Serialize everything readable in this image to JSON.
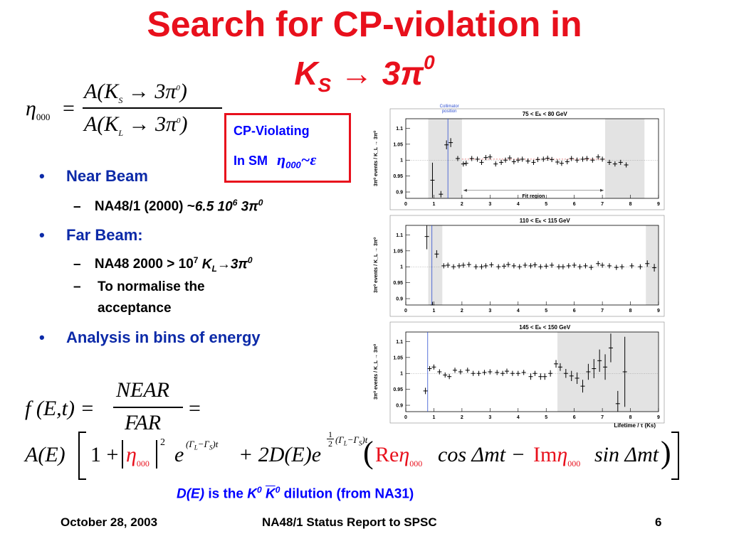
{
  "title": {
    "line1": "Search for CP-violation in",
    "line2_K": "K",
    "line2_sub": "S",
    "line2_arrow": "→",
    "line2_rest": "3π",
    "line2_sup": "0"
  },
  "eta_formula": {
    "lhs": "η",
    "lhs_sub": "000",
    "equals": "=",
    "num": "A(K",
    "num_sub": "S",
    "num_rest": "→ 3π",
    "num_sup": "0",
    "num_close": ")",
    "den": "A(K",
    "den_sub": "L",
    "den_rest": "→ 3π",
    "den_sup": "0",
    "den_close": ")"
  },
  "cp_box": {
    "line1": "CP-Violating",
    "line2": "In SM",
    "eta": "η",
    "eta_sub": "000",
    "rel": "~ε"
  },
  "bullets": {
    "b1": "Near Beam",
    "b1_sub1_pre": "NA48/1 (2000) ~",
    "b1_sub1_val": "6.5 10",
    "b1_sub1_exp": "6",
    "b1_sub1_post": " 3π",
    "b1_sub1_post_sup": "0",
    "b2": "Far Beam:",
    "b2_sub1_pre": "NA48 2000  > 10",
    "b2_sub1_exp": "7",
    "b2_sub1_k": " K",
    "b2_sub1_ksub": "L",
    "b2_sub1_post": "→3π",
    "b2_sub1_post_sup": "0",
    "b2_sub2_l1": "To normalise the",
    "b2_sub2_l2": "acceptance",
    "b3": "Analysis in bins of energy",
    "dash": "–",
    "dot": "•"
  },
  "f_formula": {
    "lhs": "f (E,t) =",
    "num": "NEAR",
    "den": "FAR",
    "eq": "="
  },
  "a_formula": {
    "lead": "A(E)",
    "one": "1 +",
    "eta": "η",
    "eta_sub": "000",
    "pow": "2",
    "exp1": "e",
    "exp1_sup": "(Γ",
    "exp1_sup_L": "L",
    "exp1_sup_mid": "−Γ",
    "exp1_sup_S": "S",
    "exp1_sup_end": ")t",
    "plus2": "+ 2D(E)e",
    "half_num": "1",
    "half_den": "2",
    "exp2_sup": "(Γ",
    "exp2_sup_L": "L",
    "exp2_sup_mid": "−Γ",
    "exp2_sup_S": "S",
    "exp2_sup_end": ")t",
    "re": "Re",
    "im": "Im",
    "cos": "cos Δmt −",
    "sin": "sin Δmt"
  },
  "dilution_note": {
    "d": "D(E)",
    "mid": " is the ",
    "k0": "K",
    "k0_sup": "0",
    "k0bar": "K",
    "k0bar_sup": "0",
    "tail": " dilution (from NA31)"
  },
  "footer": {
    "date": "October 28, 2003",
    "center": "NA48/1 Status Report to SPSC",
    "page": "6"
  },
  "colors": {
    "title_red": "#e8101c",
    "bullet_blue": "#0c2aa8",
    "box_border": "#e8101c",
    "box_text": "#0000ff",
    "shade": "#e3e3e3",
    "collimator_line": "#3050d0",
    "fit_line": "#e06060"
  },
  "chart_data": [
    {
      "type": "scatter",
      "title": "75 < E_K < 80 GeV",
      "ylabel": "3π⁰ events / K_L → 3π⁰",
      "xlim": [
        0,
        9
      ],
      "ylim": [
        0.88,
        1.13
      ],
      "yticks": [
        "0.9",
        "0.95",
        "1",
        "1.05",
        "1.1"
      ],
      "xticks": [
        "0",
        "1",
        "2",
        "3",
        "4",
        "5",
        "6",
        "7",
        "8",
        "9"
      ],
      "shaded": [
        [
          0.8,
          2.0
        ],
        [
          7.1,
          8.5
        ]
      ],
      "vline": 1.5,
      "annotation_collimator": "Collimator position",
      "annotation_fit": "Fit region",
      "fit_range": [
        2.0,
        7.1
      ],
      "points": [
        {
          "x": 0.95,
          "y": 0.937,
          "e": 0.055
        },
        {
          "x": 1.25,
          "y": 0.893,
          "e": 0.01
        },
        {
          "x": 1.45,
          "y": 1.048,
          "e": 0.014
        },
        {
          "x": 1.6,
          "y": 1.055,
          "e": 0.014
        },
        {
          "x": 1.85,
          "y": 1.005,
          "e": 0.008
        },
        {
          "x": 2.05,
          "y": 0.988,
          "e": 0.008
        },
        {
          "x": 2.15,
          "y": 0.99,
          "e": 0.008
        },
        {
          "x": 2.35,
          "y": 1.005,
          "e": 0.008
        },
        {
          "x": 2.55,
          "y": 1.003,
          "e": 0.008
        },
        {
          "x": 2.7,
          "y": 0.993,
          "e": 0.008
        },
        {
          "x": 2.85,
          "y": 1.008,
          "e": 0.008
        },
        {
          "x": 3.0,
          "y": 1.01,
          "e": 0.008
        },
        {
          "x": 3.2,
          "y": 0.988,
          "e": 0.008
        },
        {
          "x": 3.4,
          "y": 0.993,
          "e": 0.008
        },
        {
          "x": 3.55,
          "y": 1.0,
          "e": 0.008
        },
        {
          "x": 3.7,
          "y": 1.007,
          "e": 0.008
        },
        {
          "x": 3.85,
          "y": 0.995,
          "e": 0.008
        },
        {
          "x": 4.0,
          "y": 1.0,
          "e": 0.008
        },
        {
          "x": 4.15,
          "y": 1.003,
          "e": 0.008
        },
        {
          "x": 4.35,
          "y": 0.997,
          "e": 0.008
        },
        {
          "x": 4.55,
          "y": 0.993,
          "e": 0.008
        },
        {
          "x": 4.7,
          "y": 1.002,
          "e": 0.008
        },
        {
          "x": 4.9,
          "y": 1.003,
          "e": 0.008
        },
        {
          "x": 5.05,
          "y": 1.006,
          "e": 0.008
        },
        {
          "x": 5.2,
          "y": 1.002,
          "e": 0.008
        },
        {
          "x": 5.4,
          "y": 0.994,
          "e": 0.008
        },
        {
          "x": 5.55,
          "y": 0.99,
          "e": 0.008
        },
        {
          "x": 5.75,
          "y": 0.995,
          "e": 0.008
        },
        {
          "x": 5.9,
          "y": 1.005,
          "e": 0.008
        },
        {
          "x": 6.1,
          "y": 1.0,
          "e": 0.008
        },
        {
          "x": 6.3,
          "y": 1.003,
          "e": 0.008
        },
        {
          "x": 6.45,
          "y": 1.005,
          "e": 0.008
        },
        {
          "x": 6.65,
          "y": 1.0,
          "e": 0.008
        },
        {
          "x": 6.85,
          "y": 1.01,
          "e": 0.008
        },
        {
          "x": 7.0,
          "y": 1.003,
          "e": 0.008
        },
        {
          "x": 7.25,
          "y": 0.993,
          "e": 0.008
        },
        {
          "x": 7.45,
          "y": 0.988,
          "e": 0.008
        },
        {
          "x": 7.65,
          "y": 0.993,
          "e": 0.008
        },
        {
          "x": 7.85,
          "y": 0.985,
          "e": 0.008
        }
      ]
    },
    {
      "type": "scatter",
      "title": "110 < E_K < 115 GeV",
      "ylabel": "3π⁰ events / K_L → 3π⁰",
      "xlim": [
        0,
        9
      ],
      "ylim": [
        0.88,
        1.13
      ],
      "yticks": [
        "0.9",
        "0.95",
        "1",
        "1.05",
        "1.1"
      ],
      "xticks": [
        "0",
        "1",
        "2",
        "3",
        "4",
        "5",
        "6",
        "7",
        "8",
        "9"
      ],
      "shaded": [
        [
          0.8,
          1.3
        ],
        [
          8.55,
          9.0
        ]
      ],
      "vline": 0.93,
      "points": [
        {
          "x": 0.75,
          "y": 1.095,
          "e": 0.04
        },
        {
          "x": 0.95,
          "y": 0.88,
          "e": 0.01
        },
        {
          "x": 1.1,
          "y": 1.04,
          "e": 0.012
        },
        {
          "x": 1.35,
          "y": 1.003,
          "e": 0.008
        },
        {
          "x": 1.5,
          "y": 1.005,
          "e": 0.008
        },
        {
          "x": 1.7,
          "y": 1.0,
          "e": 0.008
        },
        {
          "x": 1.9,
          "y": 1.003,
          "e": 0.008
        },
        {
          "x": 2.05,
          "y": 1.005,
          "e": 0.008
        },
        {
          "x": 2.25,
          "y": 1.007,
          "e": 0.008
        },
        {
          "x": 2.5,
          "y": 1.0,
          "e": 0.008
        },
        {
          "x": 2.7,
          "y": 1.0,
          "e": 0.008
        },
        {
          "x": 2.85,
          "y": 1.003,
          "e": 0.008
        },
        {
          "x": 3.05,
          "y": 1.006,
          "e": 0.008
        },
        {
          "x": 3.3,
          "y": 1.0,
          "e": 0.008
        },
        {
          "x": 3.5,
          "y": 1.002,
          "e": 0.008
        },
        {
          "x": 3.65,
          "y": 1.007,
          "e": 0.008
        },
        {
          "x": 3.85,
          "y": 1.003,
          "e": 0.008
        },
        {
          "x": 4.05,
          "y": 1.0,
          "e": 0.008
        },
        {
          "x": 4.25,
          "y": 1.005,
          "e": 0.008
        },
        {
          "x": 4.45,
          "y": 1.003,
          "e": 0.008
        },
        {
          "x": 4.6,
          "y": 1.006,
          "e": 0.008
        },
        {
          "x": 4.8,
          "y": 1.0,
          "e": 0.008
        },
        {
          "x": 5.0,
          "y": 1.002,
          "e": 0.008
        },
        {
          "x": 5.2,
          "y": 1.005,
          "e": 0.008
        },
        {
          "x": 5.45,
          "y": 1.0,
          "e": 0.008
        },
        {
          "x": 5.6,
          "y": 1.0,
          "e": 0.008
        },
        {
          "x": 5.8,
          "y": 1.003,
          "e": 0.008
        },
        {
          "x": 6.0,
          "y": 1.005,
          "e": 0.008
        },
        {
          "x": 6.2,
          "y": 1.0,
          "e": 0.008
        },
        {
          "x": 6.4,
          "y": 1.003,
          "e": 0.008
        },
        {
          "x": 6.6,
          "y": 0.998,
          "e": 0.008
        },
        {
          "x": 6.85,
          "y": 1.01,
          "e": 0.008
        },
        {
          "x": 7.0,
          "y": 1.005,
          "e": 0.008
        },
        {
          "x": 7.25,
          "y": 1.003,
          "e": 0.008
        },
        {
          "x": 7.5,
          "y": 0.998,
          "e": 0.008
        },
        {
          "x": 7.7,
          "y": 1.0,
          "e": 0.008
        },
        {
          "x": 8.05,
          "y": 1.003,
          "e": 0.008
        },
        {
          "x": 8.35,
          "y": 1.0,
          "e": 0.008
        },
        {
          "x": 8.6,
          "y": 1.01,
          "e": 0.01
        },
        {
          "x": 8.85,
          "y": 0.997,
          "e": 0.012
        }
      ]
    },
    {
      "type": "scatter",
      "title": "145 < E_K < 150 GeV",
      "ylabel": "3π⁰ events / K_L → 3π⁰",
      "xlabel": "Lifetime / τ (Ks)",
      "xlim": [
        0,
        9
      ],
      "ylim": [
        0.88,
        1.13
      ],
      "yticks": [
        "0.9",
        "0.95",
        "1",
        "1.05",
        "1.1"
      ],
      "xticks": [
        "0",
        "1",
        "2",
        "3",
        "4",
        "5",
        "6",
        "7",
        "8",
        "9"
      ],
      "shaded": [
        [
          5.4,
          9.0
        ]
      ],
      "vline": 0.78,
      "points": [
        {
          "x": 0.7,
          "y": 0.945,
          "e": 0.01
        },
        {
          "x": 0.85,
          "y": 1.015,
          "e": 0.008
        },
        {
          "x": 1.0,
          "y": 1.02,
          "e": 0.008
        },
        {
          "x": 1.2,
          "y": 1.005,
          "e": 0.008
        },
        {
          "x": 1.4,
          "y": 0.995,
          "e": 0.008
        },
        {
          "x": 1.55,
          "y": 0.99,
          "e": 0.008
        },
        {
          "x": 1.75,
          "y": 1.01,
          "e": 0.008
        },
        {
          "x": 1.95,
          "y": 1.005,
          "e": 0.008
        },
        {
          "x": 2.2,
          "y": 1.01,
          "e": 0.008
        },
        {
          "x": 2.4,
          "y": 1.0,
          "e": 0.008
        },
        {
          "x": 2.6,
          "y": 1.0,
          "e": 0.008
        },
        {
          "x": 2.8,
          "y": 1.003,
          "e": 0.008
        },
        {
          "x": 3.0,
          "y": 1.005,
          "e": 0.008
        },
        {
          "x": 3.25,
          "y": 1.003,
          "e": 0.008
        },
        {
          "x": 3.45,
          "y": 1.0,
          "e": 0.008
        },
        {
          "x": 3.6,
          "y": 1.007,
          "e": 0.008
        },
        {
          "x": 3.8,
          "y": 1.0,
          "e": 0.008
        },
        {
          "x": 4.0,
          "y": 1.0,
          "e": 0.008
        },
        {
          "x": 4.2,
          "y": 1.003,
          "e": 0.008
        },
        {
          "x": 4.45,
          "y": 0.99,
          "e": 0.01
        },
        {
          "x": 4.6,
          "y": 1.0,
          "e": 0.008
        },
        {
          "x": 4.8,
          "y": 0.99,
          "e": 0.01
        },
        {
          "x": 4.95,
          "y": 0.99,
          "e": 0.01
        },
        {
          "x": 5.15,
          "y": 1.0,
          "e": 0.01
        },
        {
          "x": 5.35,
          "y": 1.03,
          "e": 0.012
        },
        {
          "x": 5.5,
          "y": 1.02,
          "e": 0.012
        },
        {
          "x": 5.7,
          "y": 1.0,
          "e": 0.014
        },
        {
          "x": 5.9,
          "y": 0.992,
          "e": 0.016
        },
        {
          "x": 6.1,
          "y": 0.985,
          "e": 0.018
        },
        {
          "x": 6.3,
          "y": 0.96,
          "e": 0.02
        },
        {
          "x": 6.5,
          "y": 1.005,
          "e": 0.025
        },
        {
          "x": 6.7,
          "y": 1.015,
          "e": 0.03
        },
        {
          "x": 6.9,
          "y": 1.04,
          "e": 0.035
        },
        {
          "x": 7.1,
          "y": 1.02,
          "e": 0.04
        },
        {
          "x": 7.3,
          "y": 1.08,
          "e": 0.045
        },
        {
          "x": 7.55,
          "y": 0.905,
          "e": 0.04
        },
        {
          "x": 7.8,
          "y": 1.005,
          "e": 0.11
        }
      ]
    }
  ]
}
